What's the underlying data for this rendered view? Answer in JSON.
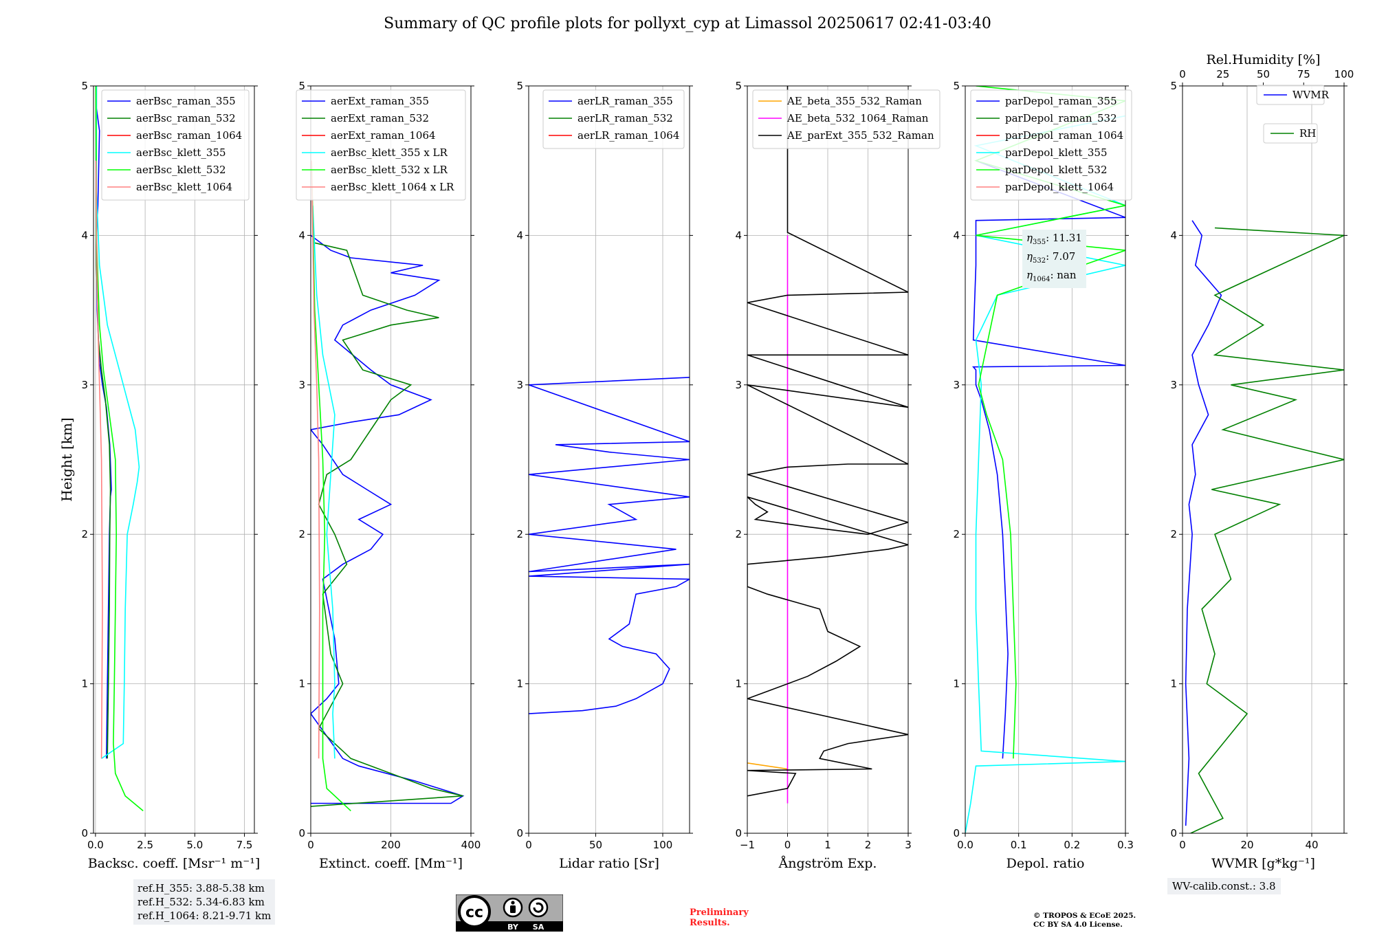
{
  "title": "Summary of QC profile plots for pollyxt_cyp at Limassol 20250617 02:41-03:40",
  "colors": {
    "blue": "#0000ff",
    "green": "#008000",
    "red": "#ff0000",
    "cyan": "#00ffff",
    "lime": "#00ff00",
    "salmon": "#ff8080",
    "orange": "#ffa500",
    "magenta": "#ff00ff",
    "black": "#000000",
    "grid": "#b0b0b0"
  },
  "ref_heights": [
    "ref.H_355: 3.88-5.38 km",
    "ref.H_532: 5.34-6.83 km",
    "ref.H_1064: 8.21-9.71 km"
  ],
  "wv_calib": "WV-calib.const.: 3.8",
  "preliminary": [
    "Preliminary",
    "Results."
  ],
  "copyright": [
    "© TROPOS & ECoE 2025.",
    "CC BY SA 4.0 License."
  ],
  "license_badge": {
    "text_by": "BY",
    "text_sa": "SA",
    "symbol": "cc"
  },
  "eta": [
    {
      "label": "η",
      "sub": "355",
      "value": ": 11.31"
    },
    {
      "label": "η",
      "sub": "532",
      "value": ": 7.07"
    },
    {
      "label": "η",
      "sub": "1064",
      "value": ": nan"
    }
  ],
  "chart_data": [
    {
      "type": "line",
      "id": "bsc",
      "xlabel": "Backsc. coeff. [Msr⁻¹ m⁻¹]",
      "ylabel": "Height [km]",
      "xlim": [
        -0.1,
        8.0
      ],
      "ylim": [
        0,
        5
      ],
      "xticks": [
        0,
        2.5,
        5.0,
        7.5
      ],
      "xticklabels": [
        "0.0",
        "2.5",
        "5.0",
        "7.5"
      ],
      "yticks": [
        0,
        1,
        2,
        3,
        4,
        5
      ],
      "legend": "upper-right",
      "series": [
        {
          "name": "aerBsc_raman_355",
          "color": "blue",
          "x": [
            0.55,
            0.6,
            0.65,
            0.7,
            0.75,
            0.8,
            0.72,
            0.55,
            0.35,
            0.2,
            0.08,
            0.05,
            0.12,
            0.2,
            0.05,
            0.05
          ],
          "y": [
            0.5,
            1.0,
            1.5,
            2.0,
            2.25,
            2.3,
            2.6,
            2.85,
            3.0,
            3.15,
            3.5,
            4.0,
            4.2,
            4.7,
            4.85,
            5.0
          ]
        },
        {
          "name": "aerBsc_raman_532",
          "color": "green",
          "x": [
            0.6,
            0.65,
            0.7,
            0.72,
            0.75,
            0.7,
            0.5,
            0.3,
            0.15,
            0.05,
            0.02
          ],
          "y": [
            0.5,
            1.0,
            1.5,
            2.0,
            2.3,
            2.6,
            2.9,
            3.1,
            3.3,
            3.8,
            5.0
          ]
        },
        {
          "name": "aerBsc_raman_1064",
          "color": "red",
          "x": [],
          "y": []
        },
        {
          "name": "aerBsc_klett_355",
          "color": "cyan",
          "x": [
            0.3,
            1.4,
            1.45,
            1.5,
            1.6,
            1.9,
            2.1,
            2.2,
            2.0,
            1.6,
            1.2,
            0.6,
            0.2,
            0.05,
            0.05
          ],
          "y": [
            0.5,
            0.6,
            1.0,
            1.5,
            2.0,
            2.2,
            2.35,
            2.45,
            2.7,
            2.9,
            3.1,
            3.4,
            3.8,
            4.3,
            5.0
          ]
        },
        {
          "name": "aerBsc_klett_532",
          "color": "lime",
          "x": [
            2.4,
            1.5,
            1.0,
            0.9,
            0.95,
            1.0,
            1.05,
            1.0,
            0.7,
            0.4,
            0.2,
            0.05,
            0.02
          ],
          "y": [
            0.15,
            0.25,
            0.4,
            0.6,
            1.0,
            1.5,
            2.0,
            2.5,
            2.8,
            3.1,
            3.4,
            4.0,
            5.0
          ]
        },
        {
          "name": "aerBsc_klett_1064",
          "color": "salmon",
          "x": [
            0.3,
            0.35,
            0.3,
            0.2,
            0.1,
            0.02
          ],
          "y": [
            0.5,
            1.5,
            2.5,
            3.0,
            3.5,
            4.5
          ]
        }
      ]
    },
    {
      "type": "line",
      "id": "ext",
      "xlabel": "Extinct. coeff. [Mm⁻¹]",
      "xlim": [
        0,
        400
      ],
      "ylim": [
        0,
        5
      ],
      "xticks": [
        0,
        200,
        400
      ],
      "xticklabels": [
        "0",
        "200",
        "400"
      ],
      "yticks": [
        0,
        1,
        2,
        3,
        4,
        5
      ],
      "legend": "upper-right",
      "series": [
        {
          "name": "aerExt_raman_355",
          "color": "blue",
          "x": [
            0,
            350,
            380,
            260,
            120,
            80,
            0,
            40,
            70,
            60,
            30,
            80,
            150,
            180,
            120,
            200,
            140,
            80,
            30,
            0,
            100,
            220,
            260,
            300,
            200,
            150,
            60,
            80,
            150,
            260,
            320,
            200,
            280,
            100,
            50,
            0
          ],
          "y": [
            0.2,
            0.2,
            0.25,
            0.35,
            0.45,
            0.5,
            0.8,
            0.9,
            1.0,
            1.3,
            1.7,
            1.8,
            1.9,
            2.0,
            2.1,
            2.2,
            2.3,
            2.4,
            2.6,
            2.7,
            2.75,
            2.8,
            2.85,
            2.9,
            3.0,
            3.1,
            3.3,
            3.4,
            3.5,
            3.6,
            3.7,
            3.75,
            3.8,
            3.85,
            3.9,
            4.0
          ]
        },
        {
          "name": "aerExt_raman_532",
          "color": "green",
          "x": [
            0,
            380,
            300,
            200,
            100,
            20,
            60,
            80,
            50,
            30,
            90,
            60,
            20,
            40,
            100,
            150,
            200,
            250,
            130,
            80,
            200,
            320,
            240,
            130,
            90,
            10
          ],
          "y": [
            0.18,
            0.25,
            0.3,
            0.4,
            0.5,
            0.7,
            0.9,
            1.0,
            1.2,
            1.6,
            1.8,
            2.0,
            2.2,
            2.4,
            2.5,
            2.7,
            2.9,
            3.0,
            3.1,
            3.3,
            3.4,
            3.45,
            3.5,
            3.6,
            3.9,
            3.95
          ]
        },
        {
          "name": "aerExt_raman_1064",
          "color": "red",
          "x": [],
          "y": []
        },
        {
          "name": "aerBsc_klett_355 x LR",
          "color": "cyan",
          "x": [
            60,
            55,
            60,
            55,
            40,
            50,
            60,
            30,
            15,
            5
          ],
          "y": [
            0.5,
            0.8,
            1.0,
            1.5,
            2.0,
            2.4,
            2.8,
            3.2,
            3.6,
            4.2
          ]
        },
        {
          "name": "aerBsc_klett_532 x LR",
          "color": "lime",
          "x": [
            100,
            40,
            30,
            30,
            30,
            35,
            30,
            20,
            10,
            2
          ],
          "y": [
            0.15,
            0.3,
            0.5,
            1.0,
            1.5,
            2.0,
            2.5,
            3.0,
            3.5,
            4.5
          ]
        },
        {
          "name": "aerBsc_klett_1064 x LR",
          "color": "salmon",
          "x": [
            20,
            22,
            20,
            15,
            8,
            2
          ],
          "y": [
            0.5,
            1.5,
            2.5,
            3.0,
            3.5,
            4.5
          ]
        }
      ]
    },
    {
      "type": "line",
      "id": "lr",
      "xlabel": "Lidar ratio [Sr]",
      "xlim": [
        0,
        120
      ],
      "ylim": [
        0,
        5
      ],
      "xticks": [
        0,
        50,
        100
      ],
      "xticklabels": [
        "0",
        "50",
        "100"
      ],
      "yticks": [
        0,
        1,
        2,
        3,
        4,
        5
      ],
      "legend": "upper-right",
      "series": [
        {
          "name": "aerLR_raman_355",
          "color": "blue",
          "x": [
            0,
            40,
            65,
            80,
            100,
            105,
            95,
            70,
            60,
            75,
            80,
            110,
            120,
            0,
            120,
            0,
            110,
            0,
            80,
            60,
            120,
            0,
            120,
            60,
            20,
            120,
            0,
            120,
            0
          ],
          "y": [
            0.8,
            0.82,
            0.85,
            0.9,
            1.0,
            1.1,
            1.2,
            1.25,
            1.3,
            1.4,
            1.6,
            1.65,
            1.7,
            1.72,
            1.8,
            1.75,
            1.9,
            2.0,
            2.1,
            2.2,
            2.25,
            2.4,
            2.5,
            2.55,
            2.6,
            2.62,
            3.0,
            3.05,
            3.0
          ]
        },
        {
          "name": "aerLR_raman_532",
          "color": "green",
          "x": [],
          "y": []
        },
        {
          "name": "aerLR_raman_1064",
          "color": "red",
          "x": [],
          "y": []
        }
      ]
    },
    {
      "type": "line",
      "id": "ae",
      "xlabel": "Ångström Exp.",
      "xlim": [
        -1,
        3
      ],
      "ylim": [
        0,
        5
      ],
      "xticks": [
        -1,
        0,
        1,
        2,
        3
      ],
      "xticklabels": [
        "−1",
        "0",
        "1",
        "2",
        "3"
      ],
      "yticks": [
        0,
        1,
        2,
        3,
        4,
        5
      ],
      "legend": "upper-left",
      "series": [
        {
          "name": "AE_beta_355_532_Raman",
          "color": "orange",
          "x": [
            -1,
            0
          ],
          "y": [
            0.47,
            0.43
          ]
        },
        {
          "name": "AE_beta_532_1064_Raman",
          "color": "magenta",
          "x": [
            0,
            0
          ],
          "y": [
            0.2,
            4.0
          ]
        },
        {
          "name": "AE_parExt_355_532_Raman",
          "color": "black",
          "x": [
            -1,
            0,
            0.2,
            -1,
            2.1,
            0.8,
            0.9,
            1.5,
            3,
            -1,
            -0.5,
            0.5,
            1.2,
            1.8,
            1.0,
            0.8,
            -0.5,
            -1,
            -1,
            1.0,
            2.5,
            3,
            -1,
            -0.8,
            -0.5,
            -0.8,
            0.5,
            2.0,
            3,
            -1,
            0,
            1.5,
            3,
            -1,
            3,
            -1,
            3,
            -1,
            0,
            1.5,
            3,
            0,
            0,
            0
          ],
          "y": [
            0.25,
            0.3,
            0.4,
            0.42,
            0.43,
            0.5,
            0.55,
            0.6,
            0.66,
            0.9,
            0.95,
            1.05,
            1.15,
            1.25,
            1.35,
            1.5,
            1.6,
            1.65,
            1.8,
            1.85,
            1.9,
            1.93,
            2.25,
            2.2,
            2.15,
            2.1,
            2.05,
            2.0,
            2.08,
            2.4,
            2.45,
            2.47,
            2.47,
            3.0,
            2.85,
            3.2,
            3.2,
            3.55,
            3.6,
            3.61,
            3.62,
            4.02,
            4.5,
            5.0
          ]
        }
      ]
    },
    {
      "type": "line",
      "id": "depol",
      "xlabel": "Depol. ratio",
      "xlim": [
        0,
        0.3
      ],
      "ylim": [
        0,
        5
      ],
      "xticks": [
        0.0,
        0.1,
        0.2,
        0.3
      ],
      "xticklabels": [
        "0.0",
        "0.1",
        "0.2",
        "0.3"
      ],
      "yticks": [
        0,
        1,
        2,
        3,
        4,
        5
      ],
      "legend": "upper-left",
      "series": [
        {
          "name": "parDepol_raman_355",
          "color": "blue",
          "x": [
            0.07,
            0.075,
            0.08,
            0.075,
            0.07,
            0.06,
            0.045,
            0.03,
            0.02,
            0.02,
            0.015,
            0.3,
            0.015,
            0.02,
            0.02,
            0.02,
            0.3,
            0.02
          ],
          "y": [
            0.5,
            0.8,
            1.2,
            1.6,
            2.0,
            2.4,
            2.7,
            2.9,
            3.0,
            3.1,
            3.12,
            3.13,
            3.3,
            3.8,
            4.0,
            4.1,
            4.12,
            4.5
          ]
        },
        {
          "name": "parDepol_raman_532",
          "color": "green",
          "x": [],
          "y": []
        },
        {
          "name": "parDepol_raman_1064",
          "color": "red",
          "x": [],
          "y": []
        },
        {
          "name": "parDepol_klett_355",
          "color": "cyan",
          "x": [
            0.0,
            0.01,
            0.02,
            0.3,
            0.03,
            0.025,
            0.02,
            0.02,
            0.025,
            0.03,
            0.02,
            0.06,
            0.3,
            0.02,
            0.3,
            0.02,
            0.3
          ],
          "y": [
            0.0,
            0.2,
            0.45,
            0.48,
            0.55,
            1.0,
            1.5,
            2.0,
            2.5,
            3.0,
            3.3,
            3.6,
            3.8,
            4.0,
            4.2,
            4.6,
            4.8
          ]
        },
        {
          "name": "parDepol_klett_532",
          "color": "lime",
          "x": [
            0.09,
            0.095,
            0.09,
            0.085,
            0.07,
            0.04,
            0.025,
            0.06,
            0.3,
            0.02,
            0.3,
            0.02,
            0.3,
            0.02
          ],
          "y": [
            0.5,
            1.0,
            1.5,
            2.0,
            2.5,
            2.8,
            3.0,
            3.6,
            3.9,
            4.0,
            4.2,
            4.5,
            4.9,
            5.0
          ]
        },
        {
          "name": "parDepol_klett_1064",
          "color": "salmon",
          "x": [],
          "y": []
        }
      ]
    },
    {
      "type": "line",
      "id": "wv",
      "xlabel": "WVMR [g*kg⁻¹]",
      "x2label": "Rel.Humidity [%]",
      "xlim": [
        0,
        50
      ],
      "ylim": [
        0,
        5
      ],
      "x2lim": [
        0,
        100
      ],
      "xticks": [
        0,
        20,
        40
      ],
      "xticklabels": [
        "0",
        "20",
        "40"
      ],
      "x2ticks": [
        0,
        25,
        50,
        75,
        100
      ],
      "x2ticklabels": [
        "0",
        "25",
        "50",
        "75",
        "100"
      ],
      "yticks": [
        0,
        1,
        2,
        3,
        4,
        5
      ],
      "legend": "upper-right",
      "series": [
        {
          "name": "WVMR",
          "color": "blue",
          "x": [
            1,
            2,
            1,
            1.5,
            3,
            2,
            4,
            3,
            8,
            5,
            3,
            8,
            12,
            4,
            6,
            3
          ],
          "y": [
            0.05,
            0.5,
            1.0,
            1.5,
            2.0,
            2.2,
            2.4,
            2.6,
            2.8,
            3.0,
            3.2,
            3.4,
            3.6,
            3.8,
            4.0,
            4.1
          ]
        },
        {
          "name": "RH",
          "color": "green",
          "x": [
            5,
            25,
            10,
            40,
            15,
            20,
            12,
            30,
            20,
            60,
            18,
            100,
            25,
            70,
            30,
            100,
            20,
            50,
            20,
            100,
            20
          ],
          "y": [
            0.0,
            0.1,
            0.4,
            0.8,
            1.0,
            1.2,
            1.5,
            1.7,
            2.0,
            2.2,
            2.3,
            2.5,
            2.7,
            2.9,
            3.0,
            3.1,
            3.2,
            3.4,
            3.6,
            4.0,
            4.05
          ]
        }
      ]
    }
  ]
}
